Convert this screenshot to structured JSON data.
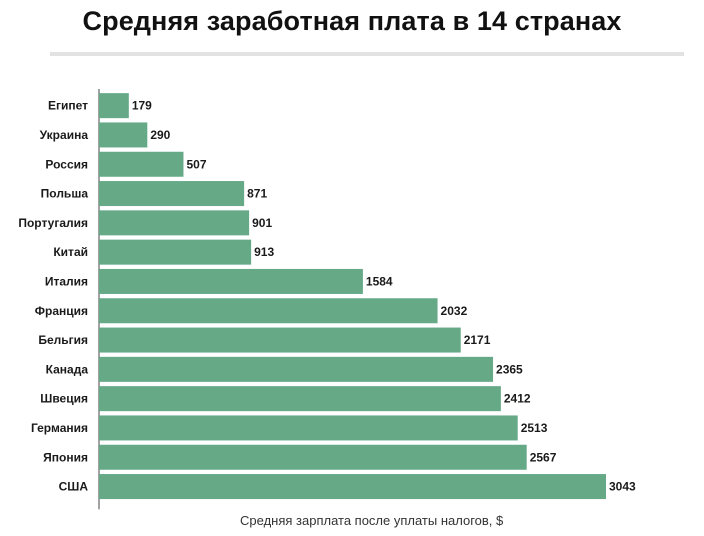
{
  "chart_data": {
    "type": "bar",
    "orientation": "horizontal",
    "title": "Средняя заработная плата в 14 странах",
    "xlabel": "Средняя зарплата после уплаты налогов, $",
    "ylabel": "",
    "categories": [
      "Египет",
      "Украина",
      "Россия",
      "Польша",
      "Португалия",
      "Китай",
      "Италия",
      "Франция",
      "Бельгия",
      "Канада",
      "Швеция",
      "Германия",
      "Япония",
      "США"
    ],
    "values": [
      179,
      290,
      507,
      871,
      901,
      913,
      1584,
      2032,
      2171,
      2365,
      2412,
      2513,
      2567,
      3043
    ],
    "xlim": [
      0,
      3043
    ],
    "bar_color": "#65a987",
    "grid": false,
    "legend": "none"
  }
}
